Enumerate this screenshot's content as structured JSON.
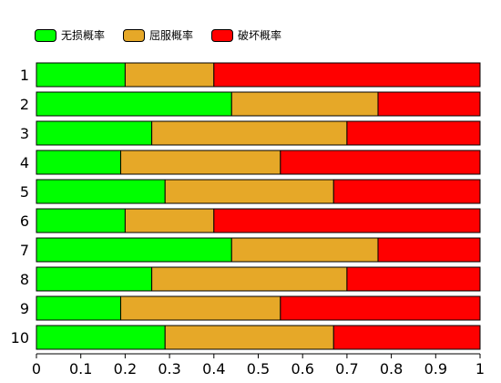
{
  "chart_data": {
    "type": "bar",
    "orientation": "horizontal",
    "stacked": true,
    "categories": [
      "1",
      "2",
      "3",
      "4",
      "5",
      "6",
      "7",
      "8",
      "9",
      "10"
    ],
    "series": [
      {
        "name": "无损概率",
        "color": "#00ff00",
        "values": [
          0.2,
          0.44,
          0.26,
          0.19,
          0.29,
          0.2,
          0.44,
          0.26,
          0.19,
          0.29
        ]
      },
      {
        "name": "屈服概率",
        "color": "#e6a828",
        "values": [
          0.2,
          0.33,
          0.44,
          0.36,
          0.38,
          0.2,
          0.33,
          0.44,
          0.36,
          0.38
        ]
      },
      {
        "name": "破坏概率",
        "color": "#ff0000",
        "values": [
          0.6,
          0.23,
          0.3,
          0.45,
          0.33,
          0.6,
          0.23,
          0.3,
          0.45,
          0.33
        ]
      }
    ],
    "xlim": [
      0,
      1
    ],
    "xticks": [
      "0",
      "0.1",
      "0.2",
      "0.3",
      "0.4",
      "0.5",
      "0.6",
      "0.7",
      "0.8",
      "0.9",
      "1"
    ],
    "legend_position": "top-left",
    "grid": false,
    "title": "",
    "xlabel": "",
    "ylabel": ""
  }
}
